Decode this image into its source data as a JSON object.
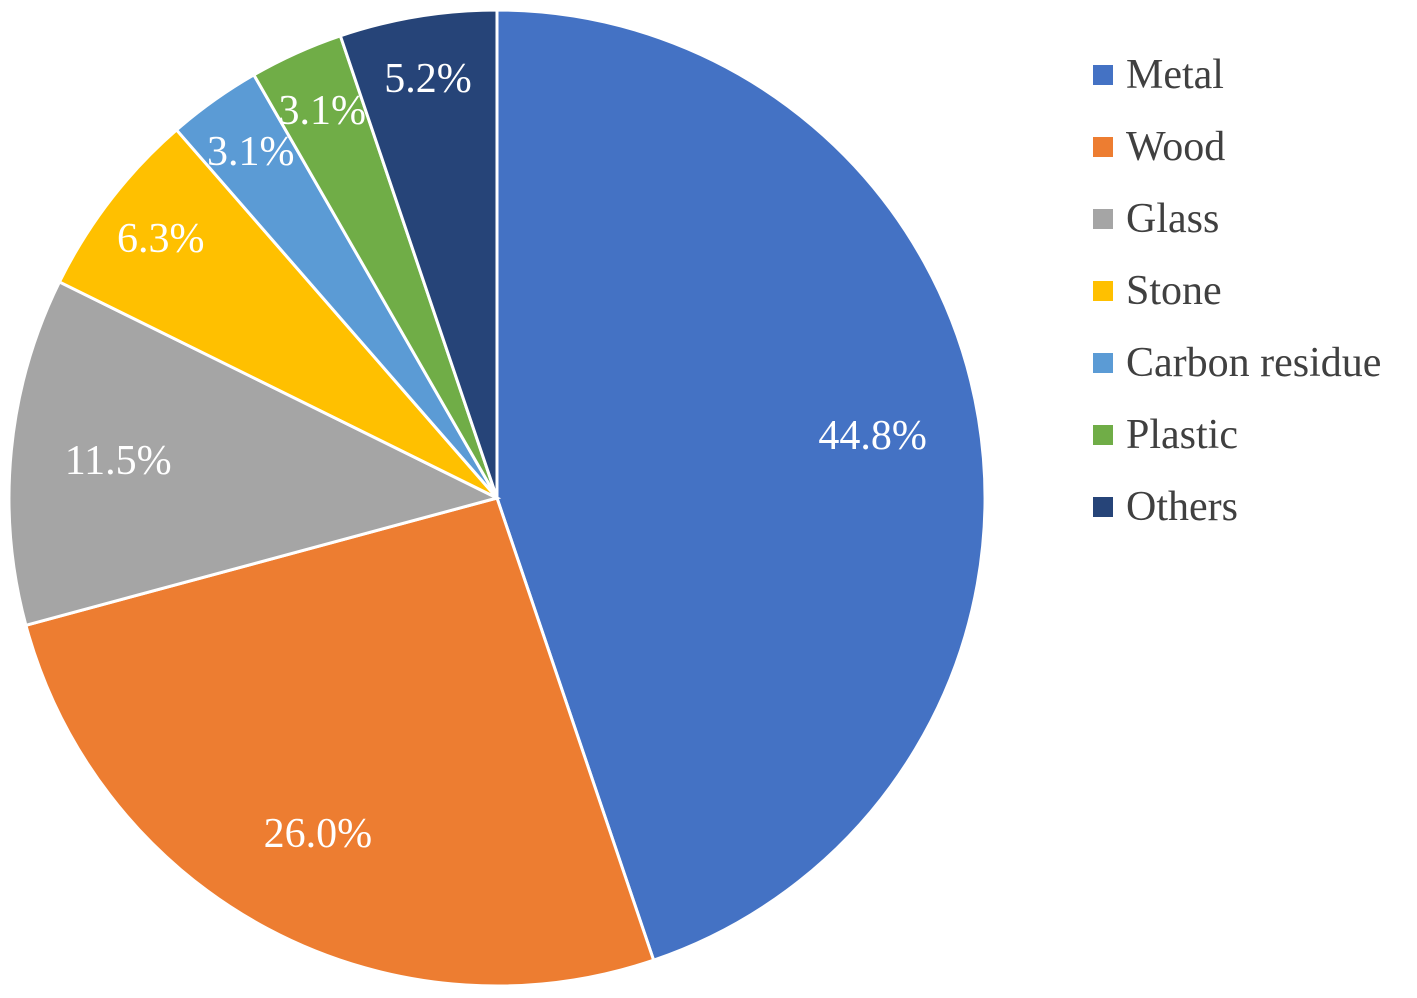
{
  "chart_data": {
    "type": "pie",
    "title": "",
    "legend_position": "right",
    "label_suffix": "%",
    "slices": [
      {
        "label": "Metal",
        "value": 44.8,
        "color": "#4472C4"
      },
      {
        "label": "Wood",
        "value": 26.0,
        "color": "#ED7D31"
      },
      {
        "label": "Glass",
        "value": 11.5,
        "color": "#A5A5A5"
      },
      {
        "label": "Stone",
        "value": 6.3,
        "color": "#FFC000"
      },
      {
        "label": "Carbon residue",
        "value": 3.1,
        "color": "#5B9BD5"
      },
      {
        "label": "Plastic",
        "value": 3.1,
        "color": "#70AD47"
      },
      {
        "label": "Others",
        "value": 5.2,
        "color": "#264478"
      }
    ]
  }
}
